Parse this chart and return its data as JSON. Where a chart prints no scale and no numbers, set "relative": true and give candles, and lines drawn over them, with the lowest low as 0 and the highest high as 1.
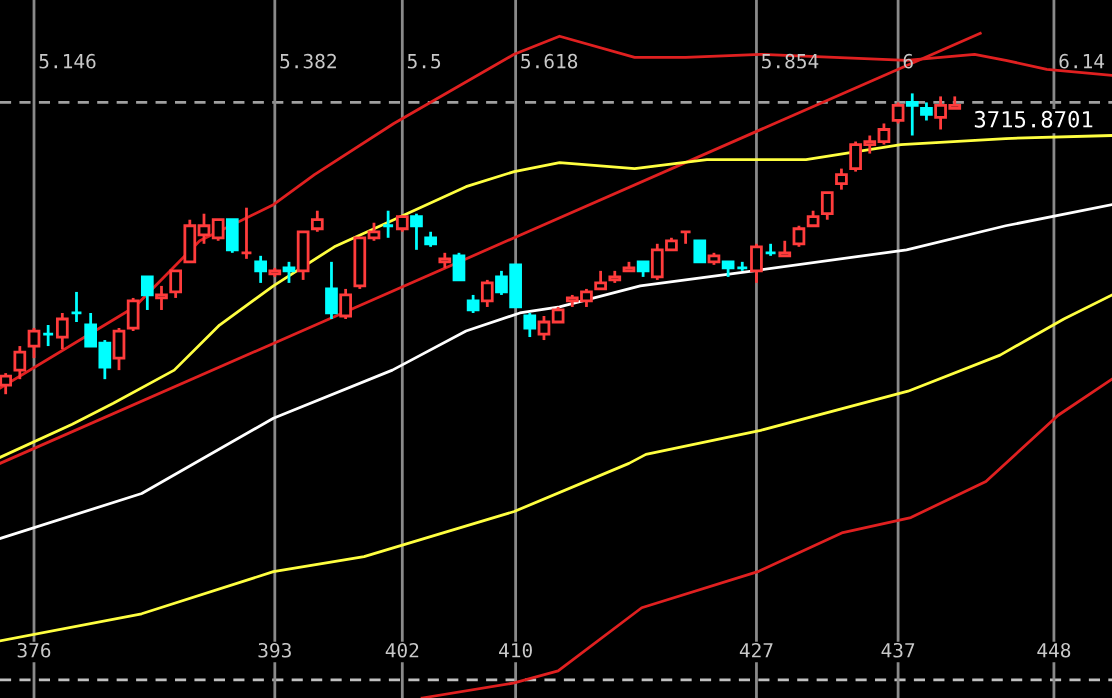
{
  "chart_data": {
    "type": "candlestick",
    "relative": true,
    "tick_labels": "x",
    "grid": "x",
    "legend": false,
    "xlim": [
      373.6,
      452.1
    ],
    "xticks": [
      376,
      393,
      402,
      410,
      427,
      437,
      448
    ],
    "x": [
      374,
      375,
      376,
      377,
      378,
      379,
      380,
      381,
      382,
      383,
      384,
      385,
      386,
      387,
      388,
      389,
      390,
      391,
      392,
      393,
      394,
      395,
      396,
      397,
      398,
      399,
      400,
      401,
      402,
      403,
      404,
      405,
      406,
      407,
      408,
      409,
      410,
      411,
      412,
      413,
      414,
      415,
      416,
      417,
      418,
      419,
      420,
      421,
      422,
      423,
      424,
      425,
      426,
      427,
      428,
      429,
      430,
      431,
      432,
      433,
      434,
      435,
      436,
      437,
      438,
      439,
      440,
      441
    ],
    "ohlc": [
      [
        0.03,
        0.07,
        0,
        0.06
      ],
      [
        0.08,
        0.16,
        0.05,
        0.14
      ],
      [
        0.16,
        0.22,
        0.12,
        0.21
      ],
      [
        0.2,
        0.23,
        0.16,
        0.2
      ],
      [
        0.19,
        0.27,
        0.15,
        0.25
      ],
      [
        0.27,
        0.34,
        0.24,
        0.27
      ],
      [
        0.23,
        0.27,
        0.16,
        0.16
      ],
      [
        0.17,
        0.18,
        0.05,
        0.09
      ],
      [
        0.12,
        0.22,
        0.08,
        0.21
      ],
      [
        0.22,
        0.32,
        0.21,
        0.31
      ],
      [
        0.39,
        0.39,
        0.28,
        0.33
      ],
      [
        0.32,
        0.36,
        0.28,
        0.33
      ],
      [
        0.34,
        0.41,
        0.32,
        0.41
      ],
      [
        0.44,
        0.58,
        0.44,
        0.56
      ],
      [
        0.53,
        0.6,
        0.5,
        0.56
      ],
      [
        0.52,
        0.58,
        0.51,
        0.58
      ],
      [
        0.58,
        0.58,
        0.47,
        0.48
      ],
      [
        0.47,
        0.62,
        0.45,
        0.47
      ],
      [
        0.44,
        0.46,
        0.37,
        0.41
      ],
      [
        0.4,
        0.42,
        0.39,
        0.41
      ],
      [
        0.42,
        0.44,
        0.37,
        0.41
      ],
      [
        0.41,
        0.54,
        0.38,
        0.54
      ],
      [
        0.55,
        0.61,
        0.54,
        0.58
      ],
      [
        0.35,
        0.44,
        0.25,
        0.27
      ],
      [
        0.26,
        0.35,
        0.25,
        0.33
      ],
      [
        0.36,
        0.52,
        0.35,
        0.52
      ],
      [
        0.52,
        0.57,
        0.51,
        0.54
      ],
      [
        0.56,
        0.61,
        0.52,
        0.56
      ],
      [
        0.55,
        0.59,
        0.54,
        0.59
      ],
      [
        0.59,
        0.6,
        0.48,
        0.56
      ],
      [
        0.52,
        0.54,
        0.49,
        0.5
      ],
      [
        0.44,
        0.47,
        0.42,
        0.45
      ],
      [
        0.46,
        0.47,
        0.38,
        0.38
      ],
      [
        0.31,
        0.33,
        0.27,
        0.28
      ],
      [
        0.31,
        0.38,
        0.29,
        0.37
      ],
      [
        0.39,
        0.41,
        0.33,
        0.34
      ],
      [
        0.43,
        0.43,
        0.29,
        0.29
      ],
      [
        0.26,
        0.27,
        0.19,
        0.22
      ],
      [
        0.2,
        0.26,
        0.18,
        0.24
      ],
      [
        0.24,
        0.29,
        0.24,
        0.28
      ],
      [
        0.31,
        0.33,
        0.29,
        0.32
      ],
      [
        0.31,
        0.35,
        0.29,
        0.34
      ],
      [
        0.35,
        0.41,
        0.35,
        0.37
      ],
      [
        0.38,
        0.41,
        0.37,
        0.39
      ],
      [
        0.41,
        0.44,
        0.41,
        0.42
      ],
      [
        0.44,
        0.44,
        0.39,
        0.41
      ],
      [
        0.39,
        0.5,
        0.38,
        0.48
      ],
      [
        0.48,
        0.52,
        0.48,
        0.51
      ],
      [
        0.54,
        0.54,
        0.5,
        0.54
      ],
      [
        0.51,
        0.51,
        0.44,
        0.44
      ],
      [
        0.44,
        0.47,
        0.43,
        0.46
      ],
      [
        0.44,
        0.44,
        0.39,
        0.42
      ],
      [
        0.42,
        0.44,
        0.41,
        0.42
      ],
      [
        0.41,
        0.5,
        0.37,
        0.49
      ],
      [
        0.47,
        0.5,
        0.46,
        0.47
      ],
      [
        0.46,
        0.51,
        0.46,
        0.47
      ],
      [
        0.5,
        0.56,
        0.49,
        0.55
      ],
      [
        0.56,
        0.61,
        0.56,
        0.59
      ],
      [
        0.6,
        0.67,
        0.58,
        0.67
      ],
      [
        0.7,
        0.75,
        0.68,
        0.73
      ],
      [
        0.75,
        0.84,
        0.74,
        0.83
      ],
      [
        0.83,
        0.86,
        0.8,
        0.84
      ],
      [
        0.84,
        0.9,
        0.83,
        0.88
      ],
      [
        0.91,
        0.97,
        0.9,
        0.96
      ],
      [
        0.97,
        1,
        0.86,
        0.96
      ],
      [
        0.95,
        0.97,
        0.91,
        0.93
      ],
      [
        0.92,
        0.99,
        0.88,
        0.96
      ],
      [
        0.95,
        0.99,
        0.95,
        0.96
      ]
    ],
    "colors": [
      "#ff3c3c",
      "#ff3c3c",
      "#ff3c3c",
      "#00ffff",
      "#ff3c3c",
      "#00ffff",
      "#00ffff",
      "#00ffff",
      "#ff3c3c",
      "#ff3c3c",
      "#00ffff",
      "#ff3c3c",
      "#ff3c3c",
      "#ff3c3c",
      "#ff3c3c",
      "#ff3c3c",
      "#00ffff",
      "#ff3c3c",
      "#00ffff",
      "#ff3c3c",
      "#00ffff",
      "#ff3c3c",
      "#ff3c3c",
      "#00ffff",
      "#ff3c3c",
      "#ff3c3c",
      "#ff3c3c",
      "#00ffff",
      "#ff3c3c",
      "#00ffff",
      "#00ffff",
      "#ff3c3c",
      "#00ffff",
      "#00ffff",
      "#ff3c3c",
      "#00ffff",
      "#00ffff",
      "#00ffff",
      "#ff3c3c",
      "#ff3c3c",
      "#ff3c3c",
      "#ff3c3c",
      "#ff3c3c",
      "#ff3c3c",
      "#ff3c3c",
      "#00ffff",
      "#ff3c3c",
      "#ff3c3c",
      "#ff3c3c",
      "#00ffff",
      "#ff3c3c",
      "#00ffff",
      "#00ffff",
      "#ff3c3c",
      "#00ffff",
      "#ff3c3c",
      "#ff3c3c",
      "#ff3c3c",
      "#ff3c3c",
      "#ff3c3c",
      "#ff3c3c",
      "#ff3c3c",
      "#ff3c3c",
      "#ff3c3c",
      "#00ffff",
      "#00ffff",
      "#ff3c3c",
      "#ff3c3c"
    ],
    "series": [
      {
        "type": "line",
        "color": "#e02020",
        "x": [
          373.6,
          383.1,
          387.7,
          392.9,
          395.8,
          401.4,
          409.9,
          413.1,
          418.4,
          422.0,
          427.3,
          432.5,
          437.6,
          442.4,
          444.6,
          447.5,
          452.1
        ],
        "values": [
          0.02,
          0.29,
          0.51,
          0.63,
          0.73,
          0.9,
          1.13,
          1.19,
          1.12,
          1.12,
          1.13,
          1.12,
          1.11,
          1.13,
          1.11,
          1.08,
          1.06
        ]
      },
      {
        "type": "line",
        "color": "#e02020",
        "x": [
          373.6,
          442.8
        ],
        "values": [
          -0.23,
          1.2
        ]
      },
      {
        "type": "line",
        "color": "#ffff40",
        "x": [
          373.6,
          378.7,
          381.6,
          385.9,
          389.1,
          392.9,
          397.2,
          401.4,
          406.5,
          409.9,
          413.1,
          418.4,
          423.5,
          430.5,
          437.2,
          444.6,
          452.1
        ],
        "values": [
          -0.21,
          -0.1,
          -0.03,
          0.08,
          0.23,
          0.36,
          0.49,
          0.58,
          0.69,
          0.74,
          0.77,
          0.75,
          0.78,
          0.78,
          0.83,
          0.85,
          0.86
        ]
      },
      {
        "type": "line",
        "color": "#ffffff",
        "x": [
          373.6,
          383.6,
          392.9,
          401.3,
          406.5,
          410.3,
          413.1,
          418.8,
          426.8,
          437.6,
          444.6,
          452.1
        ],
        "values": [
          -0.48,
          -0.33,
          -0.08,
          0.08,
          0.21,
          0.27,
          0.29,
          0.36,
          0.41,
          0.48,
          0.56,
          0.63
        ]
      },
      {
        "type": "line",
        "color": "#ffff40",
        "x": [
          373.6,
          383.6,
          392.9,
          399.3,
          409.9,
          418.0,
          419.2,
          427.3,
          437.7,
          444.2,
          448.7,
          452.1
        ],
        "values": [
          -0.82,
          -0.73,
          -0.59,
          -0.54,
          -0.39,
          -0.23,
          -0.2,
          -0.12,
          0.01,
          0.13,
          0.25,
          0.33
        ]
      },
      {
        "type": "line",
        "color": "#e02020",
        "x": [
          403.4,
          409.9,
          413.0,
          418.9,
          427.1,
          433.1,
          437.9,
          443.2,
          448.3,
          452.1
        ],
        "values": [
          -1.01,
          -0.96,
          -0.92,
          -0.71,
          -0.59,
          -0.46,
          -0.41,
          -0.29,
          -0.07,
          0.05
        ]
      }
    ],
    "ref_lines": [
      {
        "axis": "y",
        "value": 0.97,
        "color": "#a0a0a0",
        "line_style": "dashed"
      },
      {
        "axis": "y",
        "value": -0.95,
        "color": "#c0c0c0",
        "line_style": "dashed"
      }
    ],
    "annotations": [
      "5.146",
      "5.382",
      "5.5",
      "5.618",
      "5.854",
      "6",
      "6.14",
      {
        "text": "3715.8701",
        "x": 438,
        "y": 1
      }
    ]
  }
}
